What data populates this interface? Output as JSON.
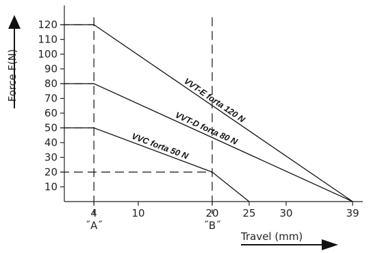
{
  "chart_data": {
    "type": "line",
    "title": "",
    "xlabel": "Travel  (mm)",
    "ylabel": "Force  F(N)",
    "xlim": [
      0,
      41
    ],
    "ylim": [
      0,
      130
    ],
    "x_ticks": [
      "4",
      "10",
      "20",
      "25",
      "30",
      "39"
    ],
    "y_ticks": [
      "10",
      "20",
      "30",
      "40",
      "50",
      "60",
      "70",
      "80",
      "90",
      "100",
      "110",
      "120"
    ],
    "grid": false,
    "legend": "none",
    "series": [
      {
        "name": "VVT-E forta 120 N",
        "x": [
          0,
          4,
          39
        ],
        "y": [
          120,
          120,
          0
        ]
      },
      {
        "name": "VVT-D forta 80 N",
        "x": [
          0,
          4,
          39
        ],
        "y": [
          80,
          80,
          0
        ]
      },
      {
        "name": "VVC forta 50 N",
        "x": [
          0,
          4,
          20,
          25
        ],
        "y": [
          50,
          50,
          20,
          0
        ]
      }
    ],
    "annotations": [
      {
        "text": "˝A˝",
        "x": 4
      },
      {
        "text": "˝B˝",
        "x": 20
      }
    ],
    "reference_lines": [
      {
        "axis": "x",
        "value": 4,
        "style": "dashed"
      },
      {
        "axis": "x",
        "value": 20,
        "style": "dashed"
      },
      {
        "axis": "y",
        "value": 120,
        "style": "dashed"
      },
      {
        "axis": "y",
        "value": 80,
        "style": "dashed"
      },
      {
        "axis": "y",
        "value": 50,
        "style": "dashed"
      },
      {
        "axis": "y",
        "value": 20,
        "style": "dashed"
      }
    ],
    "line_color": "#111111"
  }
}
